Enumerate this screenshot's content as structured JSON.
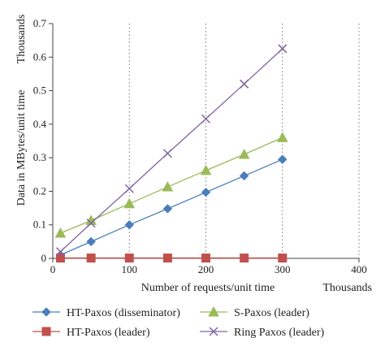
{
  "chart_data": {
    "type": "line",
    "xlabel": "Number of requests/unit time",
    "ylabel": "Data in MBytes/unit time",
    "x_unit_label": "Thousands",
    "y_unit_label": "Thousands",
    "xlim": [
      0,
      400
    ],
    "ylim": [
      0,
      0.7
    ],
    "xticks": [
      0,
      100,
      200,
      300,
      400
    ],
    "yticks": [
      0,
      0.1,
      0.2,
      0.3,
      0.4,
      0.5,
      0.6,
      0.7
    ],
    "grid": "vertical dotted",
    "legend_position": "bottom",
    "x": [
      10,
      50,
      100,
      150,
      200,
      250,
      300
    ],
    "series": [
      {
        "name": "HT-Paxos (disseminator)",
        "color": "#4a7ebb",
        "marker": "diamond",
        "values": [
          0.01,
          0.05,
          0.1,
          0.148,
          0.197,
          0.246,
          0.295
        ]
      },
      {
        "name": "S-Paxos (leader)",
        "color": "#9bbb59",
        "marker": "triangle",
        "values": [
          0.075,
          0.113,
          0.163,
          0.213,
          0.262,
          0.31,
          0.36
        ]
      },
      {
        "name": "HT-Paxos (leader)",
        "color": "#c0504d",
        "marker": "square",
        "values": [
          0.001,
          0.001,
          0.001,
          0.001,
          0.001,
          0.001,
          0.001
        ]
      },
      {
        "name": "Ring Paxos (leader)",
        "color": "#8064a2",
        "marker": "cross",
        "values": [
          0.02,
          0.105,
          0.208,
          0.313,
          0.416,
          0.52,
          0.625
        ]
      }
    ]
  }
}
